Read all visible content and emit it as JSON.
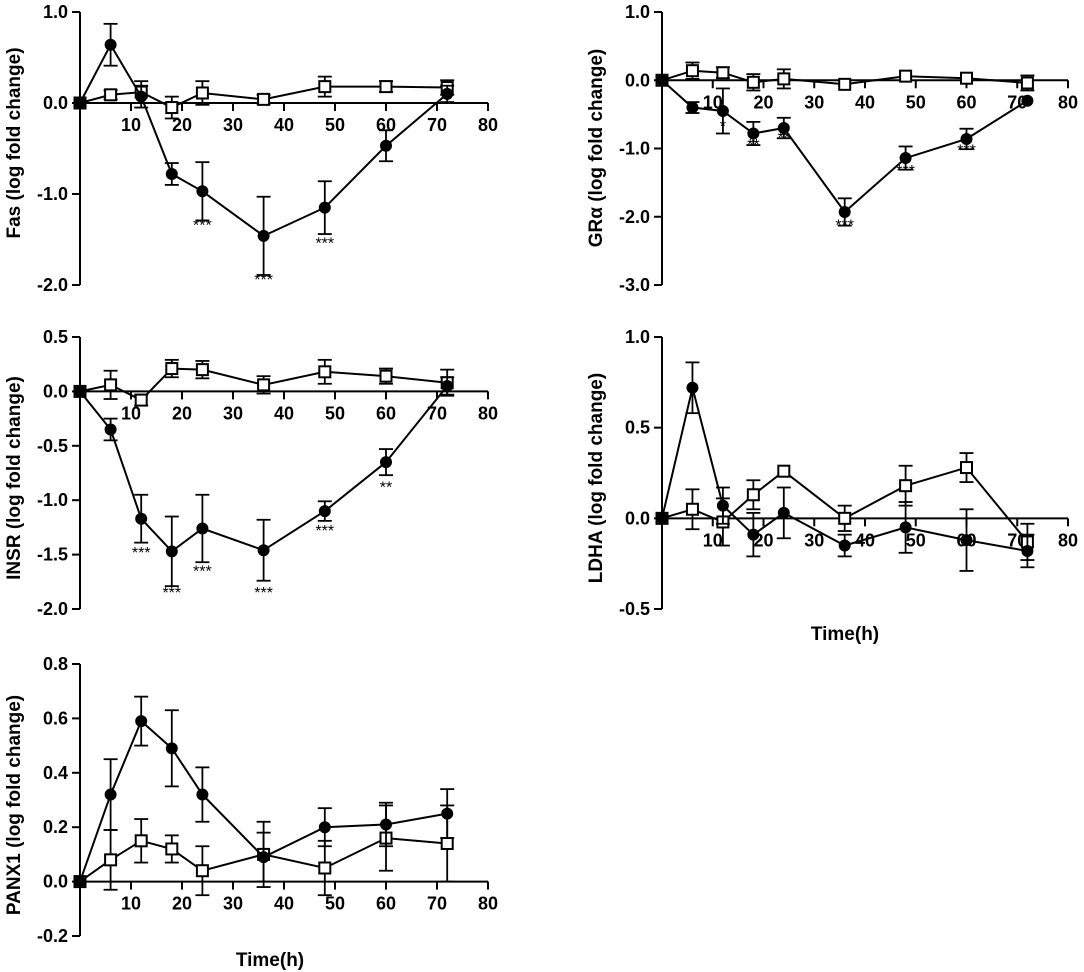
{
  "chart_data": [
    {
      "id": "fas",
      "type": "line",
      "ylabel": "Fas (log fold change)",
      "xlabel": "",
      "xlim": [
        0,
        80
      ],
      "ylim": [
        -2.0,
        1.0
      ],
      "x_ticks": [
        "10",
        "20",
        "30",
        "40",
        "50",
        "60",
        "70",
        "80"
      ],
      "y_ticks": [
        "1.0",
        "0.0",
        "-1.0",
        "-2.0"
      ],
      "series": [
        {
          "name": "filled circles",
          "marker": "circle",
          "x": [
            0,
            6,
            12,
            18,
            24,
            36,
            48,
            60,
            72
          ],
          "y": [
            0.0,
            0.64,
            0.07,
            -0.78,
            -0.97,
            -1.46,
            -1.15,
            -0.47,
            0.1
          ],
          "err": [
            0,
            0.23,
            0.12,
            0.12,
            0.32,
            0.43,
            0.29,
            0.17,
            0.09
          ]
        },
        {
          "name": "open squares",
          "marker": "square",
          "x": [
            0,
            6,
            12,
            18,
            24,
            36,
            48,
            60,
            72
          ],
          "y": [
            0.0,
            0.09,
            0.12,
            -0.05,
            0.11,
            0.04,
            0.18,
            0.18,
            0.17
          ],
          "err": [
            0,
            0.05,
            0.12,
            0.12,
            0.13,
            0.05,
            0.11,
            0.06,
            0.08
          ]
        }
      ],
      "annotations": [
        {
          "x": 24,
          "y": -1.4,
          "text": "***"
        },
        {
          "x": 36,
          "y": -2.0,
          "text": "***"
        },
        {
          "x": 48,
          "y": -1.6,
          "text": "***"
        }
      ]
    },
    {
      "id": "gra",
      "type": "line",
      "ylabel": "GRα (log fold change)",
      "xlabel": "",
      "xlim": [
        0,
        80
      ],
      "ylim": [
        -3.0,
        1.0
      ],
      "x_ticks": [
        "10",
        "20",
        "30",
        "40",
        "50",
        "60",
        "70",
        "80"
      ],
      "y_ticks": [
        "1.0",
        "0.0",
        "-1.0",
        "-2.0",
        "-3.0"
      ],
      "series": [
        {
          "name": "filled circles",
          "marker": "circle",
          "x": [
            0,
            6,
            12,
            18,
            24,
            36,
            48,
            60,
            72
          ],
          "y": [
            0.0,
            -0.4,
            -0.45,
            -0.78,
            -0.7,
            -1.93,
            -1.14,
            -0.86,
            -0.3
          ],
          "err": [
            0,
            0.08,
            0.33,
            0.17,
            0.15,
            0.2,
            0.17,
            0.15,
            0.0
          ]
        },
        {
          "name": "open squares",
          "marker": "square",
          "x": [
            0,
            6,
            12,
            18,
            24,
            36,
            48,
            60,
            72
          ],
          "y": [
            0.0,
            0.14,
            0.11,
            -0.03,
            0.02,
            -0.06,
            0.06,
            0.03,
            -0.04
          ],
          "err": [
            0,
            0.12,
            0.08,
            0.12,
            0.14,
            0.0,
            0.0,
            0.0,
            0.11
          ]
        }
      ],
      "annotations": [
        {
          "x": 12,
          "y": -0.75,
          "text": "*"
        },
        {
          "x": 18,
          "y": -1.02,
          "text": "**"
        },
        {
          "x": 24,
          "y": -0.92,
          "text": "**"
        },
        {
          "x": 36,
          "y": -2.2,
          "text": "***"
        },
        {
          "x": 48,
          "y": -1.4,
          "text": "***"
        },
        {
          "x": 60,
          "y": -1.1,
          "text": "***"
        }
      ]
    },
    {
      "id": "insr",
      "type": "line",
      "ylabel": "INSR (log fold change)",
      "xlabel": "",
      "xlim": [
        0,
        80
      ],
      "ylim": [
        -2.0,
        0.5
      ],
      "x_ticks": [
        "10",
        "20",
        "30",
        "40",
        "50",
        "60",
        "70",
        "80"
      ],
      "y_ticks": [
        "0.5",
        "0.0",
        "-0.5",
        "-1.0",
        "-1.5",
        "-2.0"
      ],
      "series": [
        {
          "name": "filled circles",
          "marker": "circle",
          "x": [
            0,
            6,
            12,
            18,
            24,
            36,
            48,
            60,
            72
          ],
          "y": [
            0.0,
            -0.35,
            -1.17,
            -1.47,
            -1.26,
            -1.46,
            -1.1,
            -0.65,
            0.05
          ],
          "err": [
            0,
            0.1,
            0.22,
            0.32,
            0.31,
            0.28,
            0.09,
            0.12,
            0.08
          ]
        },
        {
          "name": "open squares",
          "marker": "square",
          "x": [
            0,
            6,
            12,
            18,
            24,
            36,
            48,
            60,
            72
          ],
          "y": [
            0.0,
            0.06,
            -0.08,
            0.21,
            0.2,
            0.06,
            0.18,
            0.14,
            0.08
          ],
          "err": [
            0,
            0.13,
            0.05,
            0.08,
            0.08,
            0.08,
            0.11,
            0.07,
            0.12
          ]
        }
      ],
      "annotations": [
        {
          "x": 12,
          "y": -1.53,
          "text": "***"
        },
        {
          "x": 18,
          "y": -1.9,
          "text": "***"
        },
        {
          "x": 24,
          "y": -1.7,
          "text": "***"
        },
        {
          "x": 36,
          "y": -1.9,
          "text": "***"
        },
        {
          "x": 48,
          "y": -1.33,
          "text": "***"
        },
        {
          "x": 60,
          "y": -0.93,
          "text": "**"
        }
      ]
    },
    {
      "id": "ldha",
      "type": "line",
      "ylabel": "LDHA (log fold change)",
      "xlabel": "Time(h)",
      "xlim": [
        0,
        80
      ],
      "ylim": [
        -0.5,
        1.0
      ],
      "x_ticks": [
        "10",
        "20",
        "30",
        "40",
        "50",
        "60",
        "70",
        "80"
      ],
      "y_ticks": [
        "1.0",
        "0.5",
        "0.0",
        "-0.5"
      ],
      "series": [
        {
          "name": "filled circles",
          "marker": "circle",
          "x": [
            0,
            6,
            12,
            18,
            24,
            36,
            48,
            60,
            72
          ],
          "y": [
            0.0,
            0.72,
            0.07,
            -0.09,
            0.03,
            -0.15,
            -0.05,
            -0.12,
            -0.18
          ],
          "err": [
            0,
            0.14,
            0.1,
            0.12,
            0.14,
            0.06,
            0.14,
            0.17,
            0.09
          ]
        },
        {
          "name": "open squares",
          "marker": "square",
          "x": [
            0,
            6,
            12,
            18,
            24,
            36,
            48,
            60,
            72
          ],
          "y": [
            0.0,
            0.05,
            -0.02,
            0.13,
            0.26,
            0.0,
            0.18,
            0.28,
            -0.13
          ],
          "err": [
            0,
            0.11,
            0.13,
            0.08,
            0.0,
            0.07,
            0.11,
            0.08,
            0.1
          ]
        }
      ],
      "annotations": []
    },
    {
      "id": "panx1",
      "type": "line",
      "ylabel": "PANX1 (log fold change)",
      "xlabel": "Time(h)",
      "xlim": [
        0,
        80
      ],
      "ylim": [
        -0.2,
        0.8
      ],
      "x_ticks": [
        "10",
        "20",
        "30",
        "40",
        "50",
        "60",
        "70",
        "80"
      ],
      "y_ticks": [
        "0.8",
        "0.6",
        "0.4",
        "0.2",
        "0.0",
        "-0.2"
      ],
      "series": [
        {
          "name": "filled circles",
          "marker": "circle",
          "x": [
            0,
            6,
            12,
            18,
            24,
            36,
            48,
            60,
            72
          ],
          "y": [
            0.0,
            0.32,
            0.59,
            0.49,
            0.32,
            0.09,
            0.2,
            0.21,
            0.25
          ],
          "err": [
            0,
            0.13,
            0.09,
            0.14,
            0.1,
            0.09,
            0.07,
            0.08,
            0.09
          ]
        },
        {
          "name": "open squares",
          "marker": "square",
          "x": [
            0,
            6,
            12,
            18,
            24,
            36,
            48,
            60,
            72
          ],
          "y": [
            0.0,
            0.08,
            0.15,
            0.12,
            0.04,
            0.1,
            0.05,
            0.16,
            0.14
          ],
          "err": [
            0,
            0.11,
            0.08,
            0.05,
            0.09,
            0.12,
            0.1,
            0.12,
            0.14
          ]
        }
      ],
      "annotations": []
    }
  ]
}
